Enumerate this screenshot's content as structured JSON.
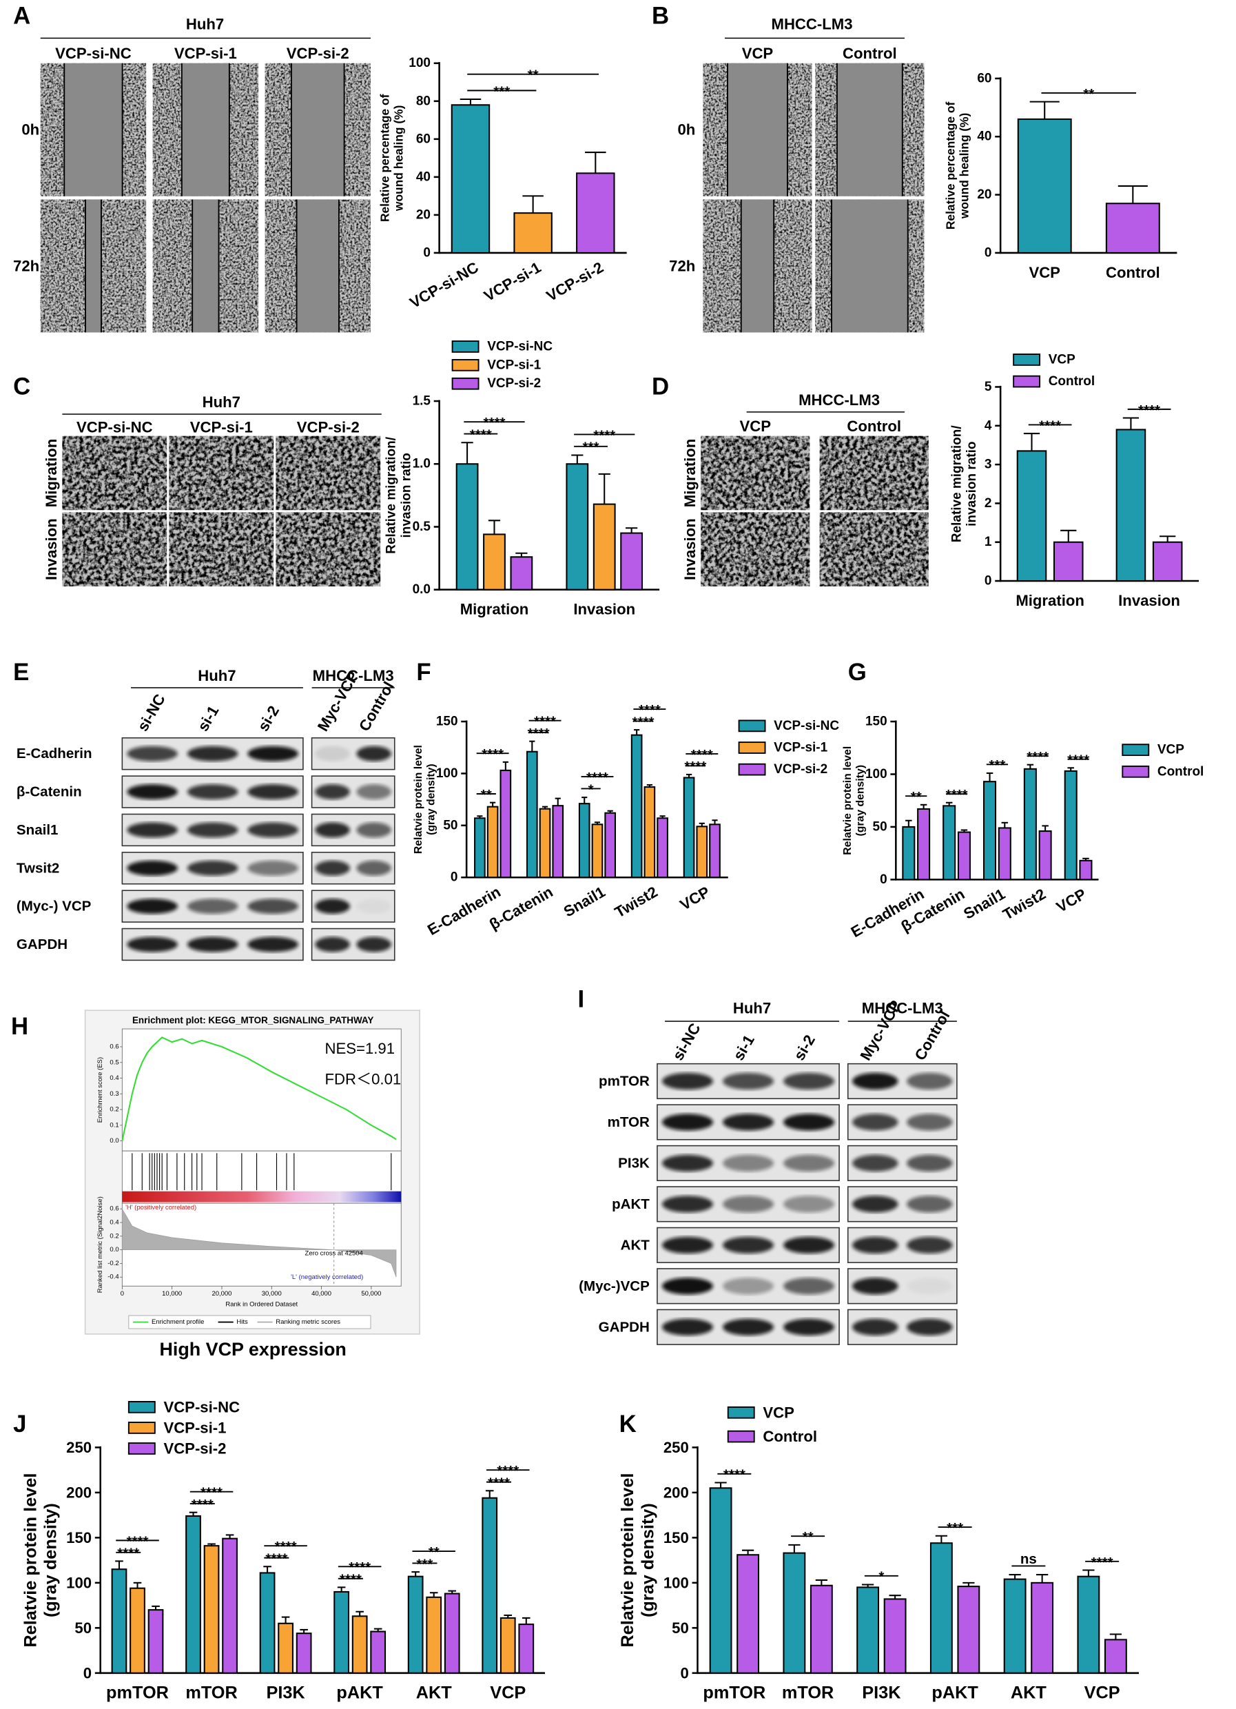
{
  "figure": {
    "letters": [
      "A",
      "B",
      "C",
      "D",
      "E",
      "F",
      "G",
      "H",
      "I",
      "J",
      "K"
    ]
  },
  "micrographs": [
    {
      "header": "Huh7",
      "columns": [
        "VCP-si-NC",
        "VCP-si-1",
        "VCP-si-2"
      ],
      "rows": [
        "0h",
        "72h"
      ]
    },
    {
      "header": "MHCC-LM3",
      "columns": [
        "VCP",
        "Control"
      ],
      "rows": [
        "0h",
        "72h"
      ]
    },
    {
      "header": "Huh7",
      "columns": [
        "VCP-si-NC",
        "VCP-si-1",
        "VCP-si-2"
      ],
      "rows": [
        "Migration",
        "Invasion"
      ]
    },
    {
      "header": "MHCC-LM3",
      "columns": [
        "VCP",
        "Control"
      ],
      "rows": [
        "Migration",
        "Invasion"
      ]
    }
  ],
  "blots": [
    {
      "groups": [
        "Huh7",
        "MHCC-LM3"
      ],
      "lanes": [
        [
          "si-NC",
          "si-1",
          "si-2"
        ],
        [
          "Myc-VCP",
          "Control"
        ]
      ],
      "rows": [
        "E-Cadherin",
        "β-Catenin",
        "Snail1",
        "Twsit2",
        "(Myc-) VCP",
        "GAPDH"
      ]
    },
    {
      "groups": [
        "Huh7",
        "MHCC-LM3"
      ],
      "lanes": [
        [
          "si-NC",
          "si-1",
          "si-2"
        ],
        [
          "Myc-VCP",
          "Control"
        ]
      ],
      "rows": [
        "pmTOR",
        "mTOR",
        "PI3K",
        "pAKT",
        "AKT",
        "(Myc-)VCP",
        "GAPDH"
      ]
    }
  ],
  "chart_data": [
    {
      "type": "bar",
      "categories": [
        "VCP-si-NC",
        "VCP-si-1",
        "VCP-si-2"
      ],
      "values": [
        78,
        21,
        42
      ],
      "errors": [
        3,
        9,
        11
      ],
      "colors": [
        "#1f9bad",
        "#f7a335",
        "#b65ce6"
      ],
      "y_label": [
        "Relative percentage of",
        "wound healing (%)"
      ],
      "ylim": [
        0,
        100
      ],
      "yticks": [
        0,
        20,
        40,
        60,
        80,
        100
      ],
      "annotations": [
        {
          "text": "***",
          "between": [
            "VCP-si-NC",
            "VCP-si-1"
          ]
        },
        {
          "text": "**",
          "between": [
            "VCP-si-NC",
            "VCP-si-2"
          ]
        }
      ]
    },
    {
      "type": "bar",
      "categories": [
        "VCP",
        "Control"
      ],
      "values": [
        46,
        17
      ],
      "errors": [
        6,
        6
      ],
      "colors": [
        "#1f9bad",
        "#b65ce6"
      ],
      "y_label": [
        "Relative percentage of",
        "wound healing (%)"
      ],
      "ylim": [
        0,
        60
      ],
      "yticks": [
        0,
        20,
        40,
        60
      ],
      "annotations": [
        {
          "text": "**",
          "between": [
            "VCP",
            "Control"
          ]
        }
      ]
    },
    {
      "type": "bar",
      "categories": [
        "Migration",
        "Invasion"
      ],
      "series": [
        {
          "name": "VCP-si-NC",
          "color": "#1f9bad",
          "values": [
            1.0,
            1.0
          ],
          "errors": [
            0.17,
            0.07
          ]
        },
        {
          "name": "VCP-si-1",
          "color": "#f7a335",
          "values": [
            0.44,
            0.68
          ],
          "errors": [
            0.11,
            0.24
          ]
        },
        {
          "name": "VCP-si-2",
          "color": "#b65ce6",
          "values": [
            0.26,
            0.45
          ],
          "errors": [
            0.03,
            0.04
          ]
        }
      ],
      "y_label": [
        "Relative migration/",
        "invasion ratio"
      ],
      "ylim": [
        0,
        1.5
      ],
      "yticks": [
        {
          "value": 0,
          "label": "0.0"
        },
        0.5,
        {
          "value": 1,
          "label": "1.0"
        },
        1.5
      ],
      "annotations": [
        {
          "text": "****",
          "category": "Migration",
          "between": [
            "VCP-si-NC",
            "VCP-si-1"
          ]
        },
        {
          "text": "****",
          "category": "Migration",
          "between": [
            "VCP-si-NC",
            "VCP-si-2"
          ]
        },
        {
          "text": "***",
          "category": "Invasion",
          "between": [
            "VCP-si-NC",
            "VCP-si-1"
          ]
        },
        {
          "text": "****",
          "category": "Invasion",
          "between": [
            "VCP-si-NC",
            "VCP-si-2"
          ]
        }
      ]
    },
    {
      "type": "bar",
      "categories": [
        "Migration",
        "Invasion"
      ],
      "series": [
        {
          "name": "VCP",
          "color": "#1f9bad",
          "values": [
            3.35,
            3.9
          ],
          "errors": [
            0.45,
            0.3
          ]
        },
        {
          "name": "Control",
          "color": "#b65ce6",
          "values": [
            1.0,
            1.0
          ],
          "errors": [
            0.3,
            0.15
          ]
        }
      ],
      "y_label": [
        "Relative migration/",
        "invasion ratio"
      ],
      "ylim": [
        0,
        5
      ],
      "yticks": [
        0,
        1,
        2,
        3,
        4,
        5
      ],
      "annotations": [
        {
          "text": "****",
          "category": "Migration",
          "between": [
            "VCP",
            "Control"
          ]
        },
        {
          "text": "****",
          "category": "Invasion",
          "between": [
            "VCP",
            "Control"
          ]
        }
      ]
    },
    {
      "type": "bar",
      "categories": [
        "E-Cadherin",
        "β-Catenin",
        "Snail1",
        "Twist2",
        "VCP"
      ],
      "series": [
        {
          "name": "VCP-si-NC",
          "color": "#1f9bad",
          "values": [
            57,
            121,
            71,
            137,
            96
          ],
          "errors": [
            2,
            10,
            6,
            5,
            3
          ]
        },
        {
          "name": "VCP-si-1",
          "color": "#f7a335",
          "values": [
            68,
            66,
            51,
            87,
            49
          ],
          "errors": [
            4,
            2,
            2,
            2,
            3
          ]
        },
        {
          "name": "VCP-si-2",
          "color": "#b65ce6",
          "values": [
            103,
            69,
            62,
            57,
            51
          ],
          "errors": [
            8,
            7,
            2,
            2,
            4
          ]
        }
      ],
      "y_label": [
        "Relatvie protein level",
        "(gray density)"
      ],
      "ylim": [
        0,
        150
      ],
      "yticks": [
        0,
        50,
        100,
        150
      ],
      "annotations": [
        {
          "text": "**",
          "category": "E-Cadherin",
          "between": [
            "VCP-si-NC",
            "VCP-si-1"
          ]
        },
        {
          "text": "****",
          "category": "E-Cadherin",
          "between": [
            "VCP-si-NC",
            "VCP-si-2"
          ]
        },
        {
          "text": "****",
          "category": "β-Catenin",
          "between": [
            "VCP-si-NC",
            "VCP-si-1"
          ]
        },
        {
          "text": "****",
          "category": "β-Catenin",
          "between": [
            "VCP-si-NC",
            "VCP-si-2"
          ]
        },
        {
          "text": "*",
          "category": "Snail1",
          "between": [
            "VCP-si-NC",
            "VCP-si-1"
          ]
        },
        {
          "text": "****",
          "category": "Snail1",
          "between": [
            "VCP-si-NC",
            "VCP-si-2"
          ]
        },
        {
          "text": "****",
          "category": "Twist2",
          "between": [
            "VCP-si-NC",
            "VCP-si-1"
          ]
        },
        {
          "text": "****",
          "category": "Twist2",
          "between": [
            "VCP-si-NC",
            "VCP-si-2"
          ]
        },
        {
          "text": "****",
          "category": "VCP",
          "between": [
            "VCP-si-NC",
            "VCP-si-1"
          ]
        },
        {
          "text": "****",
          "category": "VCP",
          "between": [
            "VCP-si-NC",
            "VCP-si-2"
          ]
        }
      ]
    },
    {
      "type": "bar",
      "categories": [
        "E-Cadherin",
        "β-Catenin",
        "Snail1",
        "Twist2",
        "VCP"
      ],
      "series": [
        {
          "name": "VCP",
          "color": "#1f9bad",
          "values": [
            50,
            70,
            93,
            105,
            103
          ],
          "errors": [
            6,
            3,
            8,
            4,
            3
          ]
        },
        {
          "name": "Control",
          "color": "#b65ce6",
          "values": [
            67,
            45,
            49,
            46,
            18
          ],
          "errors": [
            4,
            2,
            5,
            5,
            2
          ]
        }
      ],
      "y_label": [
        "Relatvie protein level",
        "(gray density)"
      ],
      "ylim": [
        0,
        150
      ],
      "yticks": [
        0,
        50,
        100,
        150
      ],
      "annotations": [
        {
          "text": "**",
          "category": "E-Cadherin",
          "between": [
            "VCP",
            "Control"
          ]
        },
        {
          "text": "****",
          "category": "β-Catenin",
          "between": [
            "VCP",
            "Control"
          ]
        },
        {
          "text": "***",
          "category": "Snail1",
          "between": [
            "VCP",
            "Control"
          ]
        },
        {
          "text": "****",
          "category": "Twist2",
          "between": [
            "VCP",
            "Control"
          ]
        },
        {
          "text": "****",
          "category": "VCP",
          "between": [
            "VCP",
            "Control"
          ]
        }
      ]
    },
    {
      "type": "line",
      "title": "Enrichment plot: KEGG_MTOR_SIGNALING_PATHWAY",
      "y_label": "Enrichment score (ES)",
      "x_label": "Rank in Ordered Dataset",
      "x": [
        0,
        1000,
        2000,
        3000,
        4000,
        5000,
        6000,
        8000,
        10000,
        12000,
        14000,
        16000,
        20000,
        25000,
        30000,
        35000,
        40000,
        45000,
        50000,
        54000,
        55000
      ],
      "series": [
        {
          "name": "Enrichment profile",
          "color": "#33dd33",
          "values": [
            0,
            0.15,
            0.3,
            0.42,
            0.5,
            0.56,
            0.6,
            0.66,
            0.63,
            0.65,
            0.62,
            0.64,
            0.6,
            0.53,
            0.44,
            0.36,
            0.28,
            0.2,
            0.1,
            0.03,
            0.01
          ]
        }
      ],
      "xlim": [
        0,
        56000
      ],
      "xticks": [
        0,
        {
          "value": 10000,
          "label": "10,000"
        },
        {
          "value": 20000,
          "label": "20,000"
        },
        {
          "value": 30000,
          "label": "30,000"
        },
        {
          "value": 40000,
          "label": "40,000"
        },
        {
          "value": 50000,
          "label": "50,000"
        }
      ],
      "ylim": [
        -0.05,
        0.7
      ],
      "yticks": [
        {
          "value": 0,
          "label": "0.0"
        },
        0.1,
        0.2,
        0.3,
        0.4,
        0.5,
        0.6
      ],
      "hits": {
        "name": "Hits",
        "color": "#000000",
        "x": [
          2000,
          4000,
          5500,
          6000,
          6500,
          7000,
          7500,
          8000,
          9000,
          11000,
          12500,
          14000,
          15000,
          16000,
          19000,
          24000,
          27000,
          31000,
          33000,
          34500,
          54000
        ]
      },
      "metric": {
        "name": "Ranking metric scores",
        "color": "#b0b0b0",
        "y_label": "Ranked list metric (Signal2Noise)",
        "x": [
          0,
          2000,
          5000,
          10000,
          20000,
          30000,
          42504,
          50000,
          54000,
          55000
        ],
        "values": [
          0.6,
          0.35,
          0.25,
          0.18,
          0.1,
          0.05,
          0,
          -0.08,
          -0.2,
          -0.4
        ],
        "ylim": [
          -0.5,
          0.65
        ],
        "yticks": [
          0.6,
          0.4,
          0.2,
          {
            "value": 0,
            "label": "0.0"
          },
          -0.2,
          -0.4
        ],
        "zero_cross": 42504,
        "zero_cross_label": "Zero cross at 42504",
        "positive_label": "'H' (positively correlated)",
        "negative_label": "'L' (negatively correlated)"
      },
      "annotations": [
        "NES=1.91",
        "FDR＜0.01"
      ],
      "caption": "High VCP expression"
    },
    {
      "type": "bar",
      "categories": [
        "pmTOR",
        "mTOR",
        "PI3K",
        "pAKT",
        "AKT",
        "VCP"
      ],
      "series": [
        {
          "name": "VCP-si-NC",
          "color": "#1f9bad",
          "values": [
            115,
            174,
            111,
            90,
            107,
            194
          ],
          "errors": [
            9,
            4,
            7,
            5,
            5,
            8
          ]
        },
        {
          "name": "VCP-si-1",
          "color": "#f7a335",
          "values": [
            94,
            141,
            55,
            63,
            84,
            61
          ],
          "errors": [
            6,
            2,
            7,
            5,
            5,
            3
          ]
        },
        {
          "name": "VCP-si-2",
          "color": "#b65ce6",
          "values": [
            70,
            149,
            44,
            46,
            88,
            54
          ],
          "errors": [
            4,
            4,
            4,
            3,
            3,
            7
          ]
        }
      ],
      "y_label": [
        "Relatvie protein level",
        "(gray density)"
      ],
      "ylim": [
        0,
        250
      ],
      "yticks": [
        0,
        50,
        100,
        150,
        200,
        250
      ],
      "annotations": [
        {
          "text": "****",
          "category": "pmTOR",
          "between": [
            "VCP-si-NC",
            "VCP-si-1"
          ]
        },
        {
          "text": "****",
          "category": "pmTOR",
          "between": [
            "VCP-si-NC",
            "VCP-si-2"
          ]
        },
        {
          "text": "****",
          "category": "mTOR",
          "between": [
            "VCP-si-NC",
            "VCP-si-1"
          ]
        },
        {
          "text": "****",
          "category": "mTOR",
          "between": [
            "VCP-si-NC",
            "VCP-si-2"
          ]
        },
        {
          "text": "****",
          "category": "PI3K",
          "between": [
            "VCP-si-NC",
            "VCP-si-1"
          ]
        },
        {
          "text": "****",
          "category": "PI3K",
          "between": [
            "VCP-si-NC",
            "VCP-si-2"
          ]
        },
        {
          "text": "****",
          "category": "pAKT",
          "between": [
            "VCP-si-NC",
            "VCP-si-1"
          ]
        },
        {
          "text": "****",
          "category": "pAKT",
          "between": [
            "VCP-si-NC",
            "VCP-si-2"
          ]
        },
        {
          "text": "***",
          "category": "AKT",
          "between": [
            "VCP-si-NC",
            "VCP-si-1"
          ]
        },
        {
          "text": "**",
          "category": "AKT",
          "between": [
            "VCP-si-NC",
            "VCP-si-2"
          ]
        },
        {
          "text": "****",
          "category": "VCP",
          "between": [
            "VCP-si-NC",
            "VCP-si-1"
          ]
        },
        {
          "text": "****",
          "category": "VCP",
          "between": [
            "VCP-si-NC",
            "VCP-si-2"
          ]
        }
      ]
    },
    {
      "type": "bar",
      "categories": [
        "pmTOR",
        "mTOR",
        "PI3K",
        "pAKT",
        "AKT",
        "VCP"
      ],
      "series": [
        {
          "name": "VCP",
          "color": "#1f9bad",
          "values": [
            205,
            133,
            95,
            144,
            104,
            107
          ],
          "errors": [
            6,
            9,
            3,
            8,
            5,
            7
          ]
        },
        {
          "name": "Control",
          "color": "#b65ce6",
          "values": [
            131,
            97,
            82,
            96,
            100,
            37
          ],
          "errors": [
            5,
            6,
            4,
            4,
            9,
            6
          ]
        }
      ],
      "y_label": [
        "Relatvie protein level",
        "(gray density)"
      ],
      "ylim": [
        0,
        250
      ],
      "yticks": [
        0,
        50,
        100,
        150,
        200,
        250
      ],
      "annotations": [
        {
          "text": "****",
          "category": "pmTOR",
          "between": [
            "VCP",
            "Control"
          ]
        },
        {
          "text": "**",
          "category": "mTOR",
          "between": [
            "VCP",
            "Control"
          ]
        },
        {
          "text": "*",
          "category": "PI3K",
          "between": [
            "VCP",
            "Control"
          ]
        },
        {
          "text": "***",
          "category": "pAKT",
          "between": [
            "VCP",
            "Control"
          ]
        },
        {
          "text": "ns",
          "category": "AKT",
          "between": [
            "VCP",
            "Control"
          ]
        },
        {
          "text": "****",
          "category": "VCP",
          "between": [
            "VCP",
            "Control"
          ]
        }
      ]
    }
  ]
}
